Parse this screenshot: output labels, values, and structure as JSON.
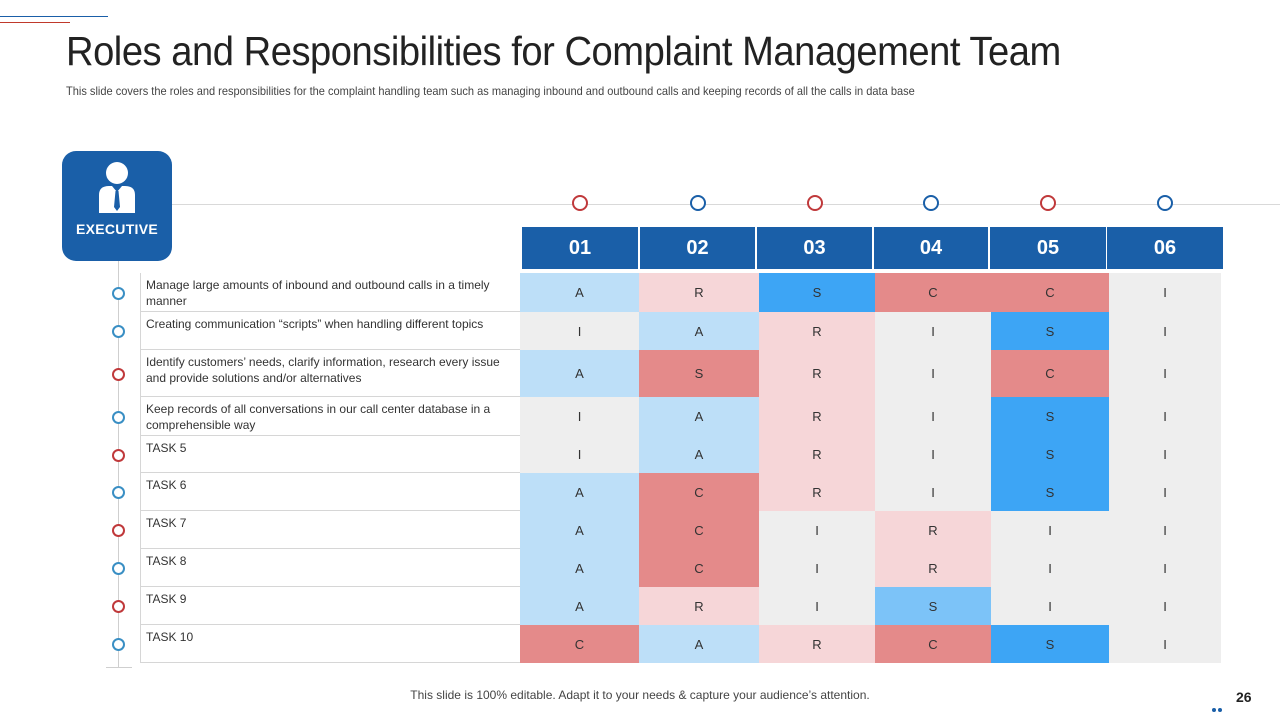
{
  "title": "Roles and Responsibilities for Complaint Management Team",
  "subtitle": "This slide covers the roles and responsibilities for the complaint handling team such as managing inbound and outbound calls and  keeping records of all the calls in data base",
  "executive_label": "EXECUTIVE",
  "columns": [
    "01",
    "02",
    "03",
    "04",
    "05",
    "06"
  ],
  "column_circle_colors": [
    "#c0393b",
    "#1a5fa8",
    "#c0393b",
    "#1a5fa8",
    "#c0393b",
    "#1a5fa8"
  ],
  "tasks": [
    "Manage large amounts of inbound and outbound calls in a timely manner",
    "Creating  communication “scripts” when handling different topics",
    "Identify customers’ needs, clarify information, research every issue and provide solutions and/or alternatives",
    "Keep records of all conversations in our call center database in a comprehensible way",
    "TASK 5",
    "TASK 6",
    "TASK 7",
    "TASK 8",
    "TASK 9",
    "TASK 10"
  ],
  "row_circle_colors": [
    "#3a8fc4",
    "#3a8fc4",
    "#c0393b",
    "#3a8fc4",
    "#c0393b",
    "#3a8fc4",
    "#c0393b",
    "#3a8fc4",
    "#c0393b",
    "#3a8fc4"
  ],
  "matrix": [
    [
      "A",
      "R",
      "S",
      "C",
      "C",
      "I"
    ],
    [
      "I",
      "A",
      "R",
      "I",
      "S",
      "I"
    ],
    [
      "A",
      "S",
      "R",
      "I",
      "C",
      "I"
    ],
    [
      "I",
      "A",
      "R",
      "I",
      "S",
      "I"
    ],
    [
      "I",
      "A",
      "R",
      "I",
      "S",
      "I"
    ],
    [
      "A",
      "C",
      "R",
      "I",
      "S",
      "I"
    ],
    [
      "A",
      "C",
      "I",
      "R",
      "I",
      "I"
    ],
    [
      "A",
      "C",
      "I",
      "R",
      "I",
      "I"
    ],
    [
      "A",
      "R",
      "I",
      "S",
      "I",
      "I"
    ],
    [
      "C",
      "A",
      "R",
      "C",
      "S",
      "I"
    ]
  ],
  "cell_colors": [
    [
      "#bddff8",
      "#f6d6d8",
      "#3da5f5",
      "#e48a8a",
      "#e48a8a",
      "#eeeeee"
    ],
    [
      "#eeeeee",
      "#bddff8",
      "#f6d6d8",
      "#eeeeee",
      "#3da5f5",
      "#eeeeee"
    ],
    [
      "#bddff8",
      "#e48a8a",
      "#f6d6d8",
      "#eeeeee",
      "#e48a8a",
      "#eeeeee"
    ],
    [
      "#eeeeee",
      "#bddff8",
      "#f6d6d8",
      "#eeeeee",
      "#3da5f5",
      "#eeeeee"
    ],
    [
      "#eeeeee",
      "#bddff8",
      "#f6d6d8",
      "#eeeeee",
      "#3da5f5",
      "#eeeeee"
    ],
    [
      "#bddff8",
      "#e48a8a",
      "#f6d6d8",
      "#eeeeee",
      "#3da5f5",
      "#eeeeee"
    ],
    [
      "#bddff8",
      "#e48a8a",
      "#eeeeee",
      "#f6d6d8",
      "#eeeeee",
      "#eeeeee"
    ],
    [
      "#bddff8",
      "#e48a8a",
      "#eeeeee",
      "#f6d6d8",
      "#eeeeee",
      "#eeeeee"
    ],
    [
      "#bddff8",
      "#f6d6d8",
      "#eeeeee",
      "#7cc3f8",
      "#eeeeee",
      "#eeeeee"
    ],
    [
      "#e48a8a",
      "#bddff8",
      "#f6d6d8",
      "#e48a8a",
      "#3da5f5",
      "#eeeeee"
    ]
  ],
  "footer": "This slide is 100% editable. Adapt it to your needs & capture your audience’s attention.",
  "page_number": "26",
  "colors": {
    "primary_blue": "#1a5fa8",
    "accent_red": "#c0393b"
  }
}
